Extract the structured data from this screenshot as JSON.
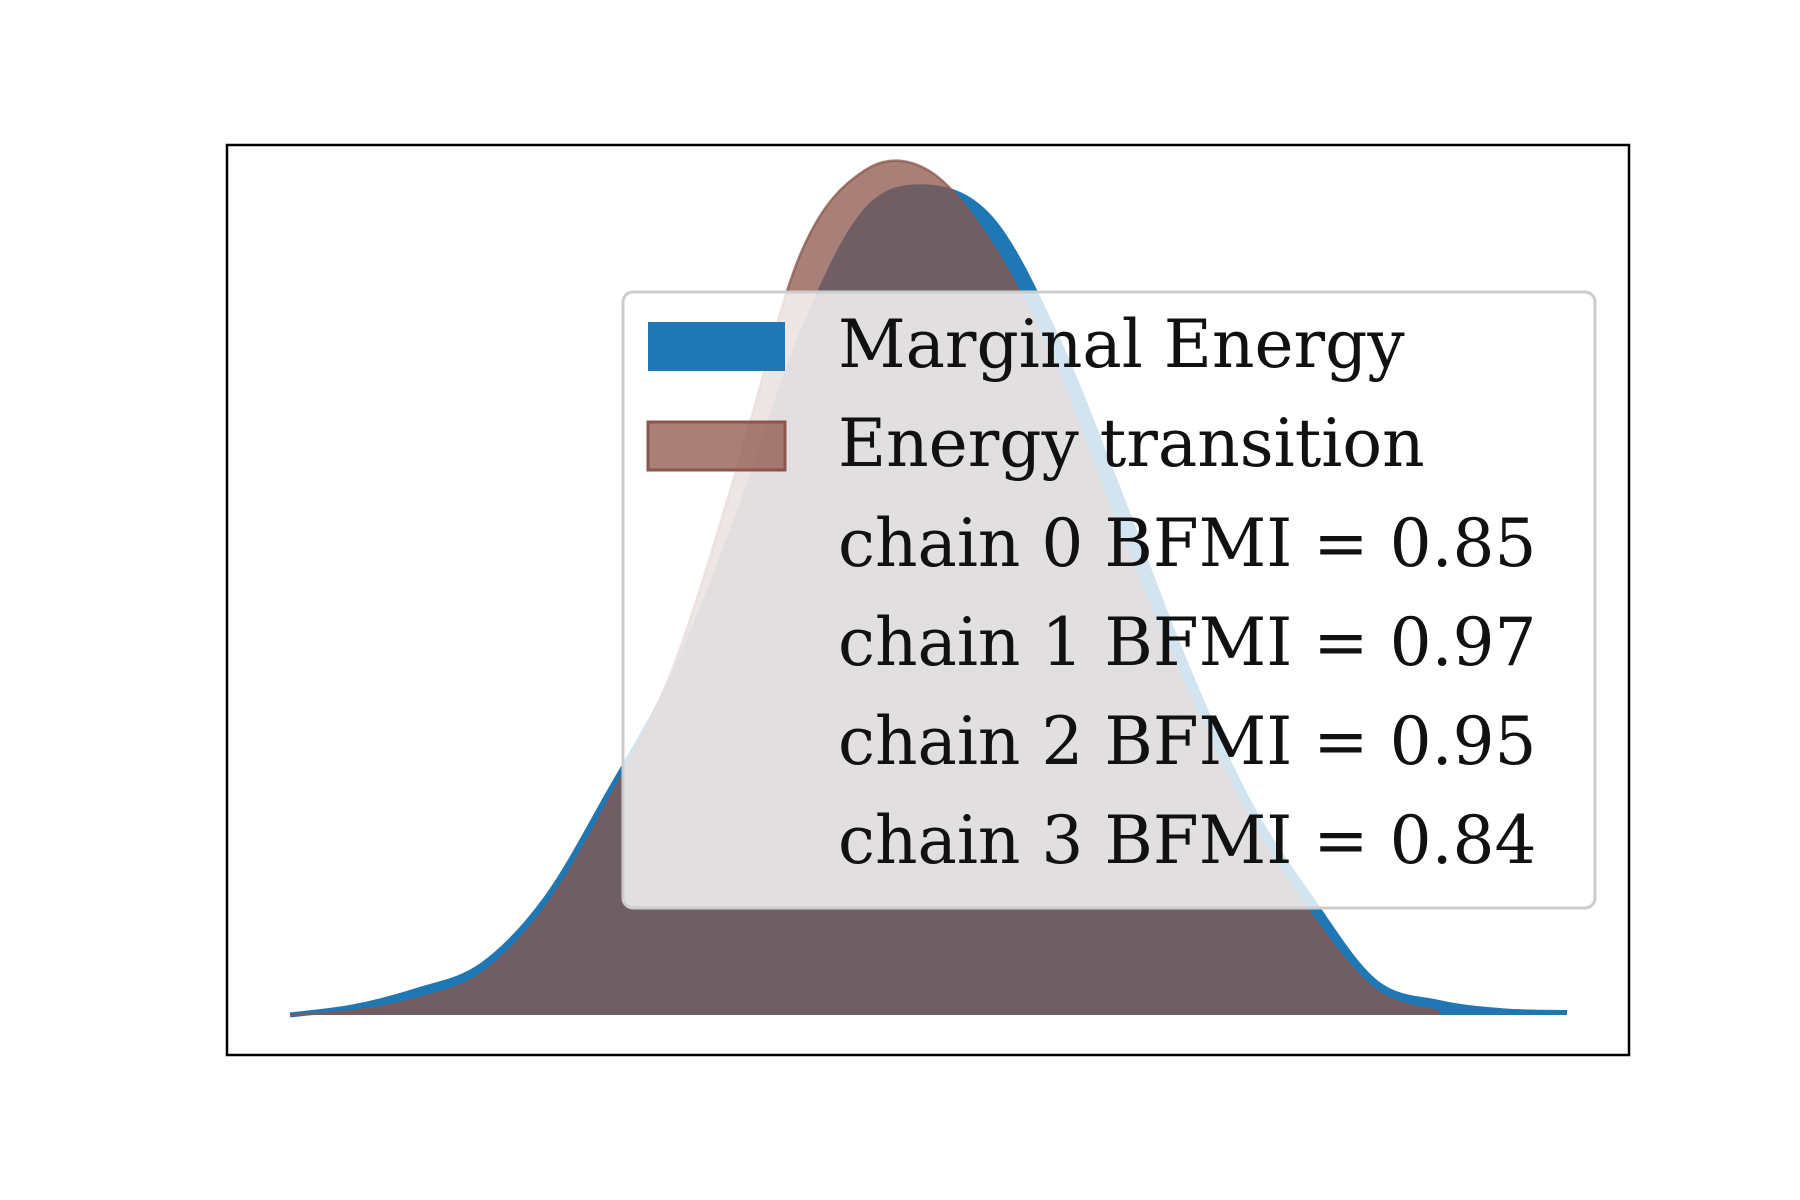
{
  "chart_data": {
    "type": "area",
    "title": "",
    "xlabel": "",
    "ylabel": "",
    "axes_ticks_visible": false,
    "grid": false,
    "legend_position": "upper right",
    "x": [
      0,
      0.05,
      0.1,
      0.15,
      0.2,
      0.25,
      0.3,
      0.35,
      0.4,
      0.45,
      0.5,
      0.55,
      0.6,
      0.65,
      0.7,
      0.75,
      0.8,
      0.85,
      0.9,
      0.95,
      1.0
    ],
    "series": [
      {
        "name": "Marginal Energy",
        "color": "#1f77b4",
        "alpha": 1.0,
        "values": [
          0,
          0.01,
          0.03,
          0.06,
          0.14,
          0.27,
          0.41,
          0.6,
          0.82,
          0.97,
          1.0,
          0.96,
          0.82,
          0.63,
          0.43,
          0.26,
          0.14,
          0.04,
          0.015,
          0.005,
          0.003
        ]
      },
      {
        "name": "Energy transition",
        "color": "#8c564b",
        "alpha": 0.75,
        "values": [
          0,
          0.005,
          0.02,
          0.05,
          0.13,
          0.26,
          0.42,
          0.66,
          0.92,
          1.02,
          1.02,
          0.93,
          0.78,
          0.58,
          0.4,
          0.24,
          0.12,
          0.03,
          0.004,
          null,
          null
        ]
      }
    ],
    "legend": {
      "entries": [
        "Marginal Energy",
        "Energy transition"
      ],
      "bfmi_lines": [
        "chain  0 BFMI = 0.85",
        "chain  1 BFMI = 0.97",
        "chain  2 BFMI = 0.95",
        "chain  3 BFMI = 0.84"
      ]
    }
  },
  "colors": {
    "marginal": "#1f77b4",
    "transition": "#8c564b",
    "frame": "#000000",
    "legend_bg": "#ffffff",
    "legend_border": "#cccccc"
  }
}
